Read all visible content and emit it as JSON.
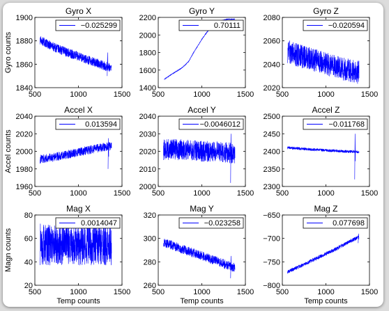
{
  "figure": {
    "line_color": "#0000ff",
    "shared_xlabel": "Temp counts"
  },
  "chart_data": [
    {
      "type": "line",
      "title": "Gyro X",
      "ylabel": "Gyro counts",
      "xlabel": "",
      "xlim": [
        500,
        1500
      ],
      "ylim": [
        1840,
        1900
      ],
      "xticks": [
        500,
        1000,
        1500
      ],
      "yticks": [
        1840,
        1860,
        1880,
        1900
      ],
      "legend": {
        "position": "top-right",
        "entries": [
          "−0.025299"
        ]
      },
      "series": [
        {
          "trend": [
            [
              560,
              1881
            ],
            [
              650,
              1877
            ],
            [
              800,
              1872
            ],
            [
              950,
              1868
            ],
            [
              1100,
              1864
            ],
            [
              1250,
              1860
            ],
            [
              1320,
              1858
            ],
            [
              1380,
              1857
            ]
          ],
          "noise": 4
        }
      ],
      "spikes": [
        [
          1330,
          1850,
          1870
        ]
      ]
    },
    {
      "type": "line",
      "title": "Gyro Y",
      "ylabel": "",
      "xlabel": "",
      "xlim": [
        500,
        1500
      ],
      "ylim": [
        1400,
        2200
      ],
      "xticks": [
        500,
        1000,
        1500
      ],
      "yticks": [
        1400,
        1600,
        1800,
        2000,
        2200
      ],
      "legend": {
        "position": "top-right",
        "entries": [
          "0.70111"
        ]
      },
      "series": [
        {
          "trend": [
            [
              570,
              1495
            ],
            [
              650,
              1550
            ],
            [
              750,
              1610
            ],
            [
              800,
              1650
            ],
            [
              850,
              1700
            ],
            [
              900,
              1790
            ],
            [
              950,
              1870
            ],
            [
              1000,
              1950
            ],
            [
              1050,
              2020
            ],
            [
              1100,
              2080
            ],
            [
              1150,
              2120
            ],
            [
              1200,
              2150
            ],
            [
              1250,
              2170
            ],
            [
              1300,
              2180
            ],
            [
              1380,
              2180
            ]
          ],
          "noise": 4
        }
      ],
      "spikes": []
    },
    {
      "type": "line",
      "title": "Gyro Z",
      "ylabel": "",
      "xlabel": "",
      "xlim": [
        500,
        1500
      ],
      "ylim": [
        2020,
        2080
      ],
      "xticks": [
        500,
        1000,
        1500
      ],
      "yticks": [
        2020,
        2040,
        2060,
        2080
      ],
      "legend": {
        "position": "top-right",
        "entries": [
          "−0.020594"
        ]
      },
      "series": [
        {
          "trend": [
            [
              560,
              2051
            ],
            [
              700,
              2047
            ],
            [
              850,
              2044
            ],
            [
              1000,
              2040
            ],
            [
              1150,
              2037
            ],
            [
              1300,
              2034
            ],
            [
              1380,
              2033
            ]
          ],
          "noise": 10
        }
      ],
      "spikes": []
    },
    {
      "type": "line",
      "title": "Accel X",
      "ylabel": "Accel counts",
      "xlabel": "",
      "xlim": [
        500,
        1500
      ],
      "ylim": [
        1960,
        2040
      ],
      "xticks": [
        500,
        1000,
        1500
      ],
      "yticks": [
        1960,
        1980,
        2000,
        2020,
        2040
      ],
      "legend": {
        "position": "top-right",
        "entries": [
          "0.013594"
        ]
      },
      "series": [
        {
          "trend": [
            [
              560,
              1991
            ],
            [
              700,
              1993
            ],
            [
              850,
              1996
            ],
            [
              1000,
              1999
            ],
            [
              1150,
              2002
            ],
            [
              1300,
              2005
            ],
            [
              1380,
              2006
            ]
          ],
          "noise": 5
        }
      ],
      "spikes": [
        [
          1340,
          1980,
          2015
        ]
      ]
    },
    {
      "type": "line",
      "title": "Accel Y",
      "ylabel": "",
      "xlabel": "",
      "xlim": [
        500,
        1500
      ],
      "ylim": [
        2000,
        2040
      ],
      "xticks": [
        500,
        1000,
        1500
      ],
      "yticks": [
        2000,
        2010,
        2020,
        2030,
        2040
      ],
      "legend": {
        "position": "top-right",
        "entries": [
          "−0.0046012"
        ]
      },
      "series": [
        {
          "trend": [
            [
              560,
              2021
            ],
            [
              800,
              2021
            ],
            [
              1000,
              2020
            ],
            [
              1200,
              2020
            ],
            [
              1380,
              2019
            ]
          ],
          "noise": 6
        }
      ],
      "spikes": [
        [
          1330,
          2002,
          2030
        ]
      ]
    },
    {
      "type": "line",
      "title": "Accel Z",
      "ylabel": "",
      "xlabel": "",
      "xlim": [
        500,
        1500
      ],
      "ylim": [
        2300,
        2500
      ],
      "xticks": [
        500,
        1000,
        1500
      ],
      "yticks": [
        2300,
        2350,
        2400,
        2450,
        2500
      ],
      "legend": {
        "position": "top-right",
        "entries": [
          "−0.011768"
        ]
      },
      "series": [
        {
          "trend": [
            [
              560,
              2410
            ],
            [
              800,
              2406
            ],
            [
              1000,
              2403
            ],
            [
              1200,
              2400
            ],
            [
              1380,
              2398
            ]
          ],
          "noise": 4
        }
      ],
      "spikes": [
        [
          1330,
          2320,
          2450
        ]
      ]
    },
    {
      "type": "line",
      "title": "Mag X",
      "ylabel": "Magn counts",
      "xlabel": "Temp counts",
      "xlim": [
        500,
        1500
      ],
      "ylim": [
        20,
        80
      ],
      "xticks": [
        500,
        1000,
        1500
      ],
      "yticks": [
        20,
        40,
        60,
        80
      ],
      "legend": {
        "position": "top-right",
        "entries": [
          "0.0014047"
        ]
      },
      "series": [
        {
          "trend": [
            [
              560,
              55
            ],
            [
              800,
              55
            ],
            [
              1000,
              55
            ],
            [
              1200,
              55
            ],
            [
              1380,
              55
            ]
          ],
          "noise": 18
        }
      ],
      "spikes": []
    },
    {
      "type": "line",
      "title": "Mag Y",
      "ylabel": "",
      "xlabel": "Temp counts",
      "xlim": [
        500,
        1500
      ],
      "ylim": [
        260,
        320
      ],
      "xticks": [
        500,
        1000,
        1500
      ],
      "yticks": [
        260,
        280,
        300,
        320
      ],
      "legend": {
        "position": "top-right",
        "entries": [
          "−0.023258"
        ]
      },
      "series": [
        {
          "trend": [
            [
              560,
              297
            ],
            [
              700,
              293
            ],
            [
              850,
              289
            ],
            [
              1000,
              285
            ],
            [
              1150,
              281
            ],
            [
              1300,
              277
            ],
            [
              1380,
              275
            ]
          ],
          "noise": 4
        }
      ],
      "spikes": [
        [
          1330,
          266,
          285
        ]
      ]
    },
    {
      "type": "line",
      "title": "Mag Z",
      "ylabel": "",
      "xlabel": "Temp counts",
      "xlim": [
        500,
        1500
      ],
      "ylim": [
        -800,
        -650
      ],
      "xticks": [
        500,
        1000,
        1500
      ],
      "yticks": [
        -800,
        -750,
        -700,
        -650
      ],
      "legend": {
        "position": "top-right",
        "entries": [
          "0.077698"
        ]
      },
      "series": [
        {
          "trend": [
            [
              560,
              -771
            ],
            [
              700,
              -760
            ],
            [
              850,
              -746
            ],
            [
              1000,
              -733
            ],
            [
              1100,
              -724
            ],
            [
              1200,
              -714
            ],
            [
              1300,
              -704
            ],
            [
              1380,
              -697
            ]
          ],
          "noise": 4
        }
      ],
      "spikes": [
        [
          1370,
          -710,
          -690
        ]
      ]
    }
  ]
}
